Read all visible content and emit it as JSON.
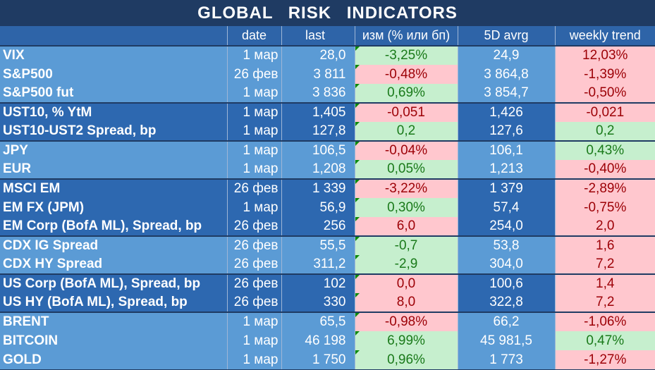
{
  "title": "GLOBAL   RISK   INDICATORS",
  "headers": [
    "",
    "date",
    "last",
    "изм (% или бп)",
    "5D avrg",
    "weekly trend"
  ],
  "rows": [
    {
      "name": "VIX",
      "date": "1 мар",
      "last": "28,0",
      "chg": "-3,25%",
      "chg_sign": "pos",
      "avg": "24,9",
      "trend": "12,03%",
      "trend_sign": "neg",
      "shade": "light",
      "group_start": true
    },
    {
      "name": "S&P500",
      "date": "26 фев",
      "last": "3 811",
      "chg": "-0,48%",
      "chg_sign": "neg",
      "avg": "3 864,8",
      "trend": "-1,39%",
      "trend_sign": "neg",
      "shade": "light",
      "group_start": false
    },
    {
      "name": "S&P500 fut",
      "date": "1 мар",
      "last": "3 836",
      "chg": "0,69%",
      "chg_sign": "pos",
      "avg": "3 854,7",
      "trend": "-0,50%",
      "trend_sign": "neg",
      "shade": "light",
      "group_start": false
    },
    {
      "name": "UST10, % YtM",
      "date": "1 мар",
      "last": "1,405",
      "chg": "-0,051",
      "chg_sign": "neg",
      "avg": "1,426",
      "trend": "-0,021",
      "trend_sign": "neg",
      "shade": "dark",
      "group_start": true
    },
    {
      "name": "UST10-UST2 Spread, bp",
      "date": "1 мар",
      "last": "127,8",
      "chg": "0,2",
      "chg_sign": "pos",
      "avg": "127,6",
      "trend": "0,2",
      "trend_sign": "pos",
      "shade": "dark",
      "group_start": false
    },
    {
      "name": "JPY",
      "date": "1 мар",
      "last": "106,5",
      "chg": "-0,04%",
      "chg_sign": "neg",
      "avg": "106,1",
      "trend": "0,43%",
      "trend_sign": "pos",
      "shade": "light",
      "group_start": true
    },
    {
      "name": "EUR",
      "date": "1 мар",
      "last": "1,208",
      "chg": "0,05%",
      "chg_sign": "pos",
      "avg": "1,213",
      "trend": "-0,40%",
      "trend_sign": "neg",
      "shade": "light",
      "group_start": false
    },
    {
      "name": "MSCI EM",
      "date": "26 фев",
      "last": "1 339",
      "chg": "-3,22%",
      "chg_sign": "neg",
      "avg": "1 379",
      "trend": "-2,89%",
      "trend_sign": "neg",
      "shade": "dark",
      "group_start": true
    },
    {
      "name": "EM FX (JPM)",
      "date": "1 мар",
      "last": "56,9",
      "chg": "0,30%",
      "chg_sign": "pos",
      "avg": "57,4",
      "trend": "-0,75%",
      "trend_sign": "neg",
      "shade": "dark",
      "group_start": false
    },
    {
      "name": "EM Corp (BofA ML), Spread, bp",
      "date": "26 фев",
      "last": "256",
      "chg": "6,0",
      "chg_sign": "neg",
      "avg": "254,0",
      "trend": "2,0",
      "trend_sign": "neg",
      "shade": "dark",
      "group_start": false
    },
    {
      "name": "CDX IG Spread",
      "date": "26 фев",
      "last": "55,5",
      "chg": "-0,7",
      "chg_sign": "pos",
      "avg": "53,8",
      "trend": "1,6",
      "trend_sign": "neg",
      "shade": "light",
      "group_start": true
    },
    {
      "name": "CDX HY Spread",
      "date": "26 фев",
      "last": "311,2",
      "chg": "-2,9",
      "chg_sign": "pos",
      "avg": "304,0",
      "trend": "7,2",
      "trend_sign": "neg",
      "shade": "light",
      "group_start": false
    },
    {
      "name": "US Corp (BofA ML), Spread, bp",
      "date": "26 фев",
      "last": "102",
      "chg": "0,0",
      "chg_sign": "neg",
      "avg": "100,6",
      "trend": "1,4",
      "trend_sign": "neg",
      "shade": "dark",
      "group_start": true
    },
    {
      "name": "US HY (BofA ML), Spread, bp",
      "date": "26 фев",
      "last": "330",
      "chg": "8,0",
      "chg_sign": "neg",
      "avg": "322,8",
      "trend": "7,2",
      "trend_sign": "neg",
      "shade": "dark",
      "group_start": false
    },
    {
      "name": "BRENT",
      "date": "1 мар",
      "last": "65,5",
      "chg": "-0,98%",
      "chg_sign": "neg",
      "avg": "66,2",
      "trend": "-1,06%",
      "trend_sign": "neg",
      "shade": "light",
      "group_start": true
    },
    {
      "name": "BITCOIN",
      "date": "1 мар",
      "last": "46 198",
      "chg": "6,99%",
      "chg_sign": "pos",
      "avg": "45 981,5",
      "trend": "0,47%",
      "trend_sign": "pos",
      "shade": "light",
      "group_start": false
    },
    {
      "name": "GOLD",
      "date": "1 мар",
      "last": "1 750",
      "chg": "0,96%",
      "chg_sign": "pos",
      "avg": "1 773",
      "trend": "-1,27%",
      "trend_sign": "neg",
      "shade": "light",
      "group_start": false
    }
  ]
}
